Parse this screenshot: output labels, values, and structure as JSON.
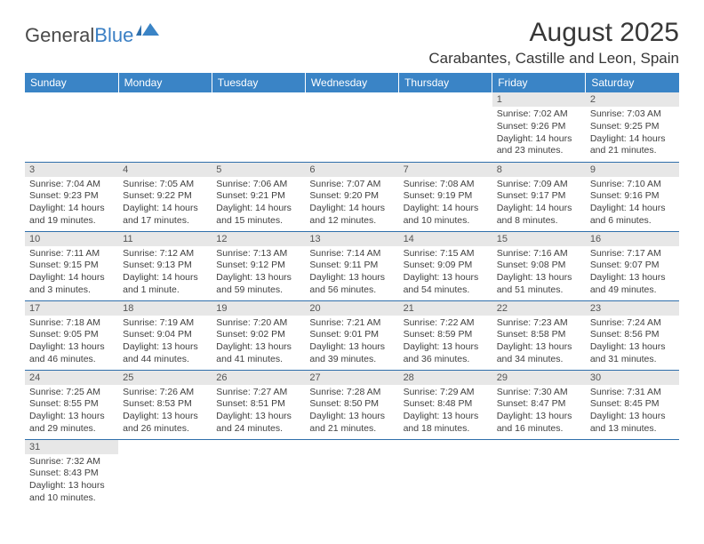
{
  "logo": {
    "text1": "General",
    "text2": "Blue"
  },
  "title": "August 2025",
  "location": "Carabantes, Castille and Leon, Spain",
  "weekdays": [
    "Sunday",
    "Monday",
    "Tuesday",
    "Wednesday",
    "Thursday",
    "Friday",
    "Saturday"
  ],
  "colors": {
    "header_bg": "#3a84c6",
    "header_fg": "#ffffff",
    "daynum_bg": "#e7e7e7",
    "border": "#2f6fab",
    "logo_blue": "#3a7fc4"
  },
  "weeks": [
    [
      {
        "empty": true
      },
      {
        "empty": true
      },
      {
        "empty": true
      },
      {
        "empty": true
      },
      {
        "empty": true
      },
      {
        "day": "1",
        "sunrise": "Sunrise: 7:02 AM",
        "sunset": "Sunset: 9:26 PM",
        "daylight": "Daylight: 14 hours and 23 minutes."
      },
      {
        "day": "2",
        "sunrise": "Sunrise: 7:03 AM",
        "sunset": "Sunset: 9:25 PM",
        "daylight": "Daylight: 14 hours and 21 minutes."
      }
    ],
    [
      {
        "day": "3",
        "sunrise": "Sunrise: 7:04 AM",
        "sunset": "Sunset: 9:23 PM",
        "daylight": "Daylight: 14 hours and 19 minutes."
      },
      {
        "day": "4",
        "sunrise": "Sunrise: 7:05 AM",
        "sunset": "Sunset: 9:22 PM",
        "daylight": "Daylight: 14 hours and 17 minutes."
      },
      {
        "day": "5",
        "sunrise": "Sunrise: 7:06 AM",
        "sunset": "Sunset: 9:21 PM",
        "daylight": "Daylight: 14 hours and 15 minutes."
      },
      {
        "day": "6",
        "sunrise": "Sunrise: 7:07 AM",
        "sunset": "Sunset: 9:20 PM",
        "daylight": "Daylight: 14 hours and 12 minutes."
      },
      {
        "day": "7",
        "sunrise": "Sunrise: 7:08 AM",
        "sunset": "Sunset: 9:19 PM",
        "daylight": "Daylight: 14 hours and 10 minutes."
      },
      {
        "day": "8",
        "sunrise": "Sunrise: 7:09 AM",
        "sunset": "Sunset: 9:17 PM",
        "daylight": "Daylight: 14 hours and 8 minutes."
      },
      {
        "day": "9",
        "sunrise": "Sunrise: 7:10 AM",
        "sunset": "Sunset: 9:16 PM",
        "daylight": "Daylight: 14 hours and 6 minutes."
      }
    ],
    [
      {
        "day": "10",
        "sunrise": "Sunrise: 7:11 AM",
        "sunset": "Sunset: 9:15 PM",
        "daylight": "Daylight: 14 hours and 3 minutes."
      },
      {
        "day": "11",
        "sunrise": "Sunrise: 7:12 AM",
        "sunset": "Sunset: 9:13 PM",
        "daylight": "Daylight: 14 hours and 1 minute."
      },
      {
        "day": "12",
        "sunrise": "Sunrise: 7:13 AM",
        "sunset": "Sunset: 9:12 PM",
        "daylight": "Daylight: 13 hours and 59 minutes."
      },
      {
        "day": "13",
        "sunrise": "Sunrise: 7:14 AM",
        "sunset": "Sunset: 9:11 PM",
        "daylight": "Daylight: 13 hours and 56 minutes."
      },
      {
        "day": "14",
        "sunrise": "Sunrise: 7:15 AM",
        "sunset": "Sunset: 9:09 PM",
        "daylight": "Daylight: 13 hours and 54 minutes."
      },
      {
        "day": "15",
        "sunrise": "Sunrise: 7:16 AM",
        "sunset": "Sunset: 9:08 PM",
        "daylight": "Daylight: 13 hours and 51 minutes."
      },
      {
        "day": "16",
        "sunrise": "Sunrise: 7:17 AM",
        "sunset": "Sunset: 9:07 PM",
        "daylight": "Daylight: 13 hours and 49 minutes."
      }
    ],
    [
      {
        "day": "17",
        "sunrise": "Sunrise: 7:18 AM",
        "sunset": "Sunset: 9:05 PM",
        "daylight": "Daylight: 13 hours and 46 minutes."
      },
      {
        "day": "18",
        "sunrise": "Sunrise: 7:19 AM",
        "sunset": "Sunset: 9:04 PM",
        "daylight": "Daylight: 13 hours and 44 minutes."
      },
      {
        "day": "19",
        "sunrise": "Sunrise: 7:20 AM",
        "sunset": "Sunset: 9:02 PM",
        "daylight": "Daylight: 13 hours and 41 minutes."
      },
      {
        "day": "20",
        "sunrise": "Sunrise: 7:21 AM",
        "sunset": "Sunset: 9:01 PM",
        "daylight": "Daylight: 13 hours and 39 minutes."
      },
      {
        "day": "21",
        "sunrise": "Sunrise: 7:22 AM",
        "sunset": "Sunset: 8:59 PM",
        "daylight": "Daylight: 13 hours and 36 minutes."
      },
      {
        "day": "22",
        "sunrise": "Sunrise: 7:23 AM",
        "sunset": "Sunset: 8:58 PM",
        "daylight": "Daylight: 13 hours and 34 minutes."
      },
      {
        "day": "23",
        "sunrise": "Sunrise: 7:24 AM",
        "sunset": "Sunset: 8:56 PM",
        "daylight": "Daylight: 13 hours and 31 minutes."
      }
    ],
    [
      {
        "day": "24",
        "sunrise": "Sunrise: 7:25 AM",
        "sunset": "Sunset: 8:55 PM",
        "daylight": "Daylight: 13 hours and 29 minutes."
      },
      {
        "day": "25",
        "sunrise": "Sunrise: 7:26 AM",
        "sunset": "Sunset: 8:53 PM",
        "daylight": "Daylight: 13 hours and 26 minutes."
      },
      {
        "day": "26",
        "sunrise": "Sunrise: 7:27 AM",
        "sunset": "Sunset: 8:51 PM",
        "daylight": "Daylight: 13 hours and 24 minutes."
      },
      {
        "day": "27",
        "sunrise": "Sunrise: 7:28 AM",
        "sunset": "Sunset: 8:50 PM",
        "daylight": "Daylight: 13 hours and 21 minutes."
      },
      {
        "day": "28",
        "sunrise": "Sunrise: 7:29 AM",
        "sunset": "Sunset: 8:48 PM",
        "daylight": "Daylight: 13 hours and 18 minutes."
      },
      {
        "day": "29",
        "sunrise": "Sunrise: 7:30 AM",
        "sunset": "Sunset: 8:47 PM",
        "daylight": "Daylight: 13 hours and 16 minutes."
      },
      {
        "day": "30",
        "sunrise": "Sunrise: 7:31 AM",
        "sunset": "Sunset: 8:45 PM",
        "daylight": "Daylight: 13 hours and 13 minutes."
      }
    ],
    [
      {
        "day": "31",
        "sunrise": "Sunrise: 7:32 AM",
        "sunset": "Sunset: 8:43 PM",
        "daylight": "Daylight: 13 hours and 10 minutes."
      },
      {
        "empty": true
      },
      {
        "empty": true
      },
      {
        "empty": true
      },
      {
        "empty": true
      },
      {
        "empty": true
      },
      {
        "empty": true
      }
    ]
  ]
}
